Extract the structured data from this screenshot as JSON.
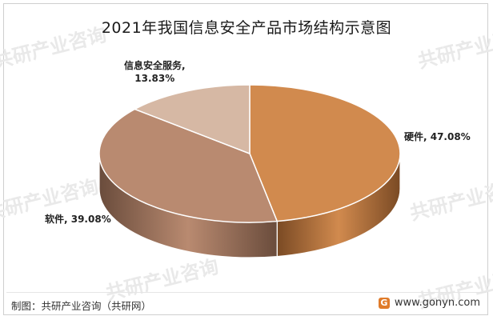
{
  "chart_data": {
    "type": "pie",
    "title": "2021年我国信息安全产品市场结构示意图",
    "categories": [
      "硬件",
      "软件",
      "信息安全服务"
    ],
    "values": [
      47.08,
      39.08,
      13.83
    ],
    "unit": "%",
    "data_labels": [
      "硬件, 47.08%",
      "软件, 39.08%",
      "信息安全服务, 13.83%"
    ],
    "label_service_line1": "信息安全服务,",
    "label_service_line2": "13.83%",
    "colors": [
      "#d18a4e",
      "#b98a70",
      "#d6b8a4"
    ],
    "side_colors": [
      "#7a4a24",
      "#6a4c3c",
      "#8a7060"
    ],
    "style": "3d-pie"
  },
  "watermark_text": "共研产业咨询",
  "footer": {
    "source": "制图：共研产业咨询（共研网）",
    "site": "www.gonyn.com",
    "logo_glyph": "G"
  }
}
